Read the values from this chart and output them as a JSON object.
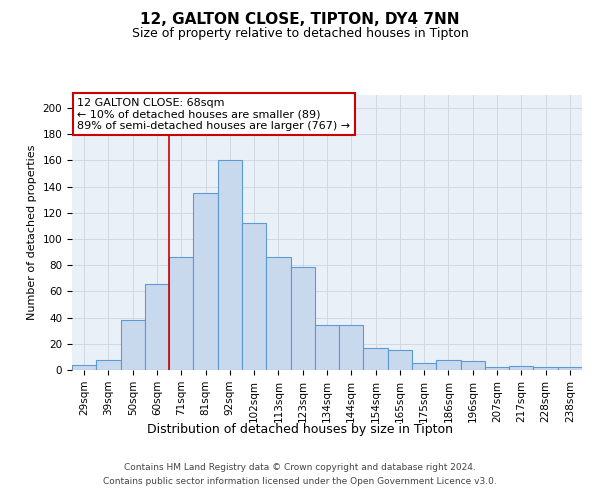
{
  "title": "12, GALTON CLOSE, TIPTON, DY4 7NN",
  "subtitle": "Size of property relative to detached houses in Tipton",
  "xlabel": "Distribution of detached houses by size in Tipton",
  "ylabel": "Number of detached properties",
  "bin_labels": [
    "29sqm",
    "39sqm",
    "50sqm",
    "60sqm",
    "71sqm",
    "81sqm",
    "92sqm",
    "102sqm",
    "113sqm",
    "123sqm",
    "134sqm",
    "144sqm",
    "154sqm",
    "165sqm",
    "175sqm",
    "186sqm",
    "196sqm",
    "207sqm",
    "217sqm",
    "228sqm",
    "238sqm"
  ],
  "bar_heights": [
    4,
    8,
    38,
    66,
    86,
    135,
    160,
    112,
    86,
    79,
    34,
    34,
    17,
    15,
    5,
    8,
    7,
    2,
    3,
    2,
    2
  ],
  "bar_color": "#c9d9ed",
  "bar_edge_color": "#5b9bd5",
  "grid_color": "#d0d8e4",
  "background_color": "#eaf0f8",
  "annotation_text": "12 GALTON CLOSE: 68sqm\n← 10% of detached houses are smaller (89)\n89% of semi-detached houses are larger (767) →",
  "annotation_box_color": "#ffffff",
  "annotation_border_color": "#cc0000",
  "red_line_bin": 4,
  "ylim": [
    0,
    210
  ],
  "yticks": [
    0,
    20,
    40,
    60,
    80,
    100,
    120,
    140,
    160,
    180,
    200
  ],
  "footer_line1": "Contains HM Land Registry data © Crown copyright and database right 2024.",
  "footer_line2": "Contains public sector information licensed under the Open Government Licence v3.0.",
  "title_fontsize": 11,
  "subtitle_fontsize": 9,
  "tick_fontsize": 7.5,
  "ylabel_fontsize": 8,
  "xlabel_fontsize": 9,
  "annotation_fontsize": 8,
  "footer_fontsize": 6.5
}
